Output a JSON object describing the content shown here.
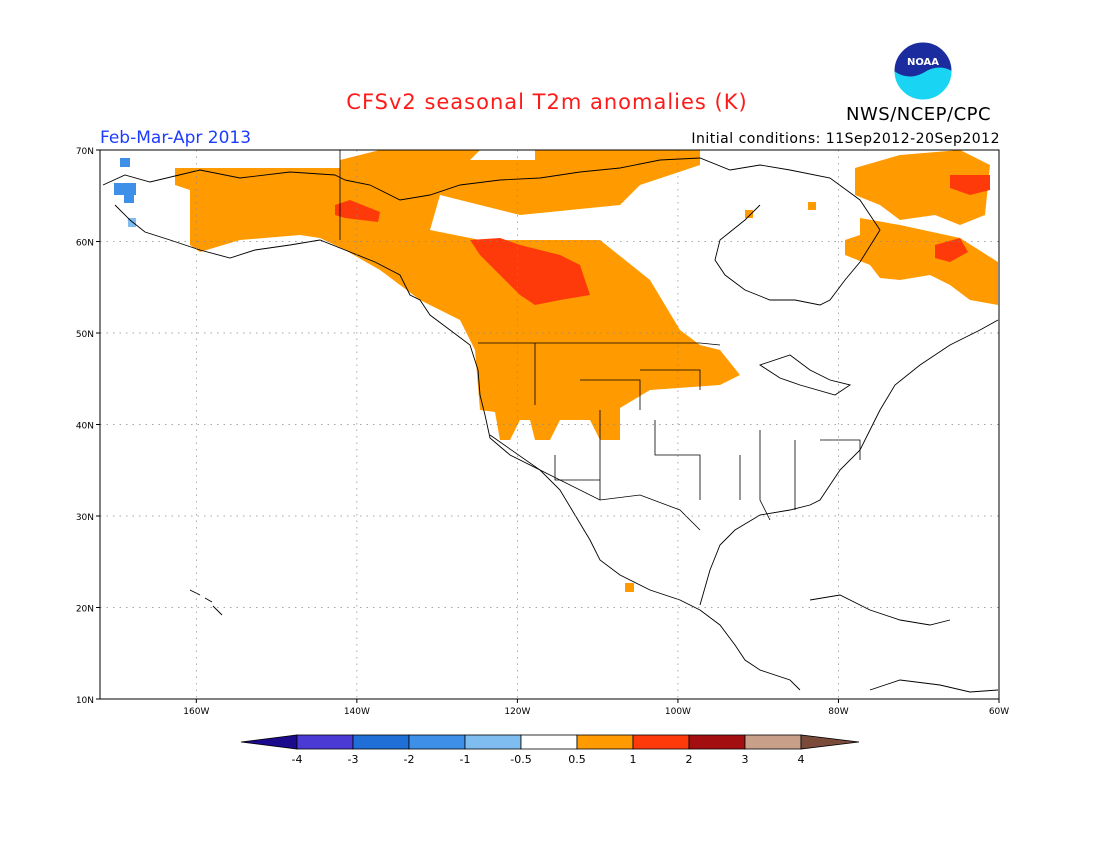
{
  "title": "CFSv2 seasonal T2m anomalies (K)",
  "period_label": "Feb-Mar-Apr 2013",
  "initial_conditions": "Initial conditions: 11Sep2012-20Sep2012",
  "agency": "NWS/NCEP/CPC",
  "logo_text": "NOAA",
  "lat_labels": [
    "70N",
    "60N",
    "50N",
    "40N",
    "30N",
    "20N",
    "10N"
  ],
  "lon_labels": [
    "160W",
    "140W",
    "120W",
    "100W",
    "80W",
    "60W"
  ],
  "colorbar": {
    "labels": [
      "-4",
      "-3",
      "-2",
      "-1",
      "-0.5",
      "0.5",
      "1",
      "2",
      "3",
      "4"
    ],
    "colors": [
      "#1b0a8c",
      "#4b3bd4",
      "#1f6fd6",
      "#3d8fe8",
      "#7fbcf0",
      "#ffffff",
      "#ff9a00",
      "#ff3a0a",
      "#a30f10",
      "#c8a08a",
      "#7a4a3a"
    ]
  },
  "colors": {
    "title": "#ff1a1a",
    "period": "#1e3cff",
    "warm1": "#ff9a00",
    "warm2": "#ff3a0a",
    "cold": "#3d8fe8"
  }
}
